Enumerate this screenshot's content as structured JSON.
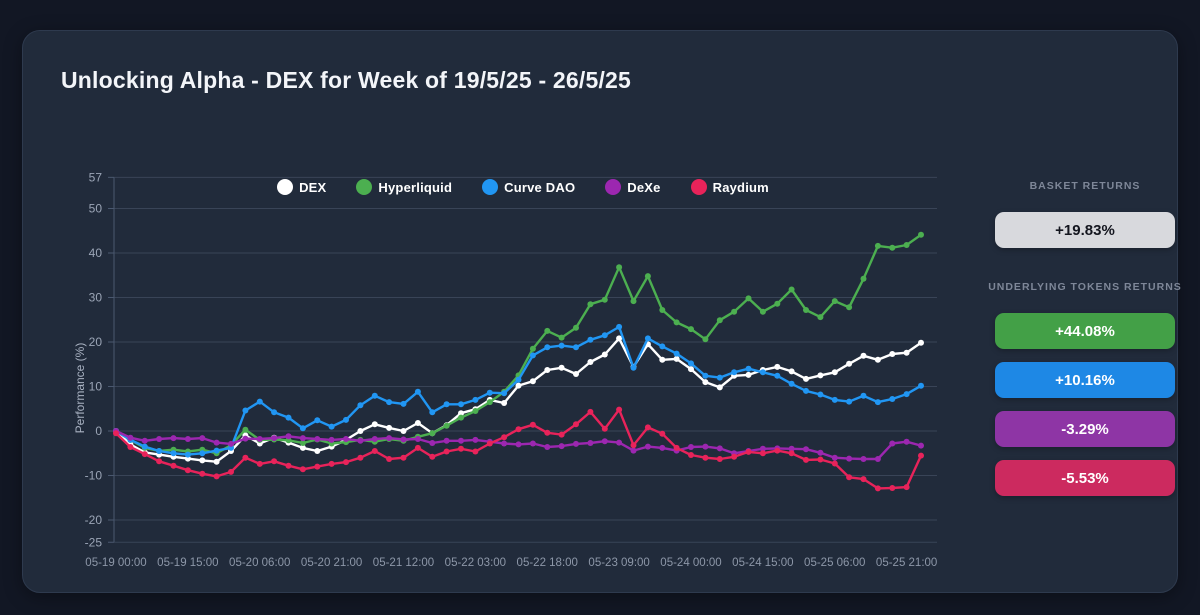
{
  "header": {
    "title": "Unlocking Alpha - DEX for Week of 19/5/25 - 26/5/25"
  },
  "panel": {
    "basket_label": "BASKET RETURNS",
    "basket": {
      "value": "+19.83%",
      "bg": "#d8d9dd",
      "text_color": "#14161f"
    },
    "underlying_label": "UNDERLYING TOKENS RETURNS",
    "token_returns": [
      {
        "token": "Hyperliquid",
        "value": "+44.08%",
        "bg": "#43a047"
      },
      {
        "token": "Curve DAO",
        "value": "+10.16%",
        "bg": "#1e88e5"
      },
      {
        "token": "DeXe",
        "value": "-3.29%",
        "bg": "#8e35a5"
      },
      {
        "token": "Raydium",
        "value": "-5.53%",
        "bg": "#cc2a5f"
      }
    ]
  },
  "chart_data": {
    "type": "line",
    "ylabel": "Performance (%)",
    "ylim": [
      -25,
      57
    ],
    "y_ticks": [
      57,
      50,
      40,
      30,
      20,
      10,
      0,
      -10,
      -20,
      -25
    ],
    "grid": true,
    "legend_position": "top-center",
    "x_tick_hours": [
      0,
      15,
      30,
      45,
      60,
      75,
      90,
      105,
      120,
      135,
      150,
      165
    ],
    "x_tick_labels": [
      "05-19 00:00",
      "05-19 15:00",
      "05-20 06:00",
      "05-20 21:00",
      "05-21 12:00",
      "05-22 03:00",
      "05-22 18:00",
      "05-23 09:00",
      "05-24 00:00",
      "05-24 15:00",
      "05-25 06:00",
      "05-25 21:00"
    ],
    "hours": [
      0,
      3,
      6,
      9,
      12,
      15,
      18,
      21,
      24,
      27,
      30,
      33,
      36,
      39,
      42,
      45,
      48,
      51,
      54,
      57,
      60,
      63,
      66,
      69,
      72,
      75,
      78,
      81,
      84,
      87,
      90,
      93,
      96,
      99,
      102,
      105,
      108,
      111,
      114,
      117,
      120,
      123,
      126,
      129,
      132,
      135,
      138,
      141,
      144,
      147,
      150,
      153,
      156,
      159,
      162,
      165,
      168
    ],
    "series": [
      {
        "name": "DEX",
        "color": "#ffffff",
        "final_return": "+19.83%",
        "values": [
          0,
          -3.0,
          -4.8,
          -5.3,
          -5.8,
          -6.2,
          -6.6,
          -6.9,
          -4.5,
          -1.0,
          -2.8,
          -1.5,
          -2.6,
          -3.8,
          -4.5,
          -3.5,
          -2.0,
          0,
          1.5,
          0.7,
          0,
          1.8,
          -0.5,
          1.3,
          4.0,
          4.9,
          7.0,
          6.3,
          10.2,
          11.2,
          13.7,
          14.2,
          12.8,
          15.5,
          17.2,
          20.8,
          14.4,
          19.5,
          16.0,
          16.2,
          13.9,
          11.0,
          9.8,
          12.4,
          12.6,
          13.7,
          14.4,
          13.4,
          11.7,
          12.5,
          13.2,
          15.1,
          16.9,
          16.0,
          17.3,
          17.6,
          19.83
        ]
      },
      {
        "name": "Hyperliquid",
        "color": "#4caf50",
        "final_return": "+44.08%",
        "values": [
          0,
          -2.0,
          -3.8,
          -4.5,
          -4.2,
          -4.6,
          -4.2,
          -5.0,
          -3.2,
          0.3,
          -2.0,
          -1.9,
          -2.1,
          -2.7,
          -1.9,
          -2.8,
          -2.5,
          -2.0,
          -2.4,
          -1.8,
          -2.2,
          -1.3,
          -0.5,
          1.2,
          3.0,
          4.5,
          6.5,
          8.8,
          12.5,
          18.5,
          22.5,
          21.0,
          23.2,
          28.5,
          29.5,
          36.8,
          29.2,
          34.8,
          27.2,
          24.4,
          22.9,
          20.6,
          24.9,
          26.8,
          29.8,
          26.8,
          28.6,
          31.8,
          27.2,
          25.6,
          29.2,
          27.8,
          34.2,
          41.6,
          41.2,
          41.8,
          44.08
        ]
      },
      {
        "name": "Curve DAO",
        "color": "#2196f3",
        "final_return": "+10.16%",
        "values": [
          0,
          -2.0,
          -3.5,
          -4.5,
          -5.0,
          -5.3,
          -5.0,
          -4.4,
          -3.8,
          4.6,
          6.6,
          4.2,
          3.0,
          0.6,
          2.4,
          1.0,
          2.5,
          5.8,
          7.9,
          6.5,
          6.1,
          8.8,
          4.2,
          6.0,
          6.0,
          7.0,
          8.6,
          8.5,
          11.5,
          17.0,
          18.8,
          19.2,
          18.8,
          20.5,
          21.5,
          23.4,
          14.2,
          20.8,
          19.0,
          17.4,
          15.2,
          12.4,
          12.0,
          13.2,
          14.0,
          13.2,
          12.4,
          10.6,
          9.0,
          8.2,
          7.0,
          6.6,
          7.9,
          6.5,
          7.2,
          8.3,
          10.16
        ]
      },
      {
        "name": "DeXe",
        "color": "#9c27b0",
        "final_return": "-3.29%",
        "values": [
          0,
          -1.5,
          -2.2,
          -1.8,
          -1.6,
          -1.8,
          -1.6,
          -2.6,
          -2.9,
          -1.7,
          -1.8,
          -1.6,
          -1.2,
          -1.6,
          -1.8,
          -2.0,
          -1.8,
          -2.2,
          -1.8,
          -1.6,
          -1.9,
          -1.8,
          -2.7,
          -2.2,
          -2.2,
          -2.0,
          -2.4,
          -2.8,
          -3.0,
          -2.8,
          -3.6,
          -3.4,
          -2.9,
          -2.7,
          -2.3,
          -2.6,
          -4.4,
          -3.5,
          -3.8,
          -4.4,
          -3.6,
          -3.5,
          -3.9,
          -5.0,
          -4.5,
          -4.0,
          -3.9,
          -4.0,
          -4.1,
          -4.9,
          -6.0,
          -6.2,
          -6.3,
          -6.3,
          -2.8,
          -2.4,
          -3.29
        ]
      },
      {
        "name": "Raydium",
        "color": "#e8235a",
        "final_return": "-5.53%",
        "values": [
          -0.5,
          -3.6,
          -5.2,
          -6.8,
          -7.8,
          -8.8,
          -9.6,
          -10.2,
          -9.2,
          -6.0,
          -7.4,
          -6.8,
          -7.8,
          -8.6,
          -8.0,
          -7.4,
          -7.0,
          -6.0,
          -4.5,
          -6.3,
          -6.0,
          -3.8,
          -5.8,
          -4.6,
          -4.0,
          -4.6,
          -2.8,
          -1.4,
          0.4,
          1.4,
          -0.4,
          -0.8,
          1.5,
          4.3,
          0.5,
          4.8,
          -3.2,
          0.8,
          -0.6,
          -3.8,
          -5.4,
          -6.0,
          -6.3,
          -5.8,
          -4.7,
          -5.0,
          -4.4,
          -5.0,
          -6.5,
          -6.4,
          -7.3,
          -10.4,
          -10.8,
          -12.9,
          -12.8,
          -12.6,
          -5.53
        ]
      }
    ]
  }
}
